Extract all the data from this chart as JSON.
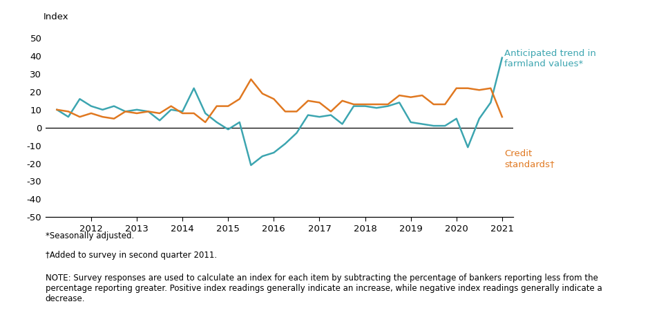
{
  "farmland_values": [
    10,
    6,
    16,
    12,
    10,
    12,
    9,
    10,
    9,
    4,
    10,
    9,
    22,
    8,
    3,
    -1,
    3,
    -21,
    -16,
    -14,
    -9,
    -3,
    7,
    6,
    7,
    2,
    12,
    12,
    11,
    12,
    14,
    3,
    2,
    1,
    1,
    5,
    -11,
    5,
    14,
    39
  ],
  "credit_standards": [
    10,
    9,
    6,
    8,
    6,
    5,
    9,
    8,
    9,
    8,
    12,
    8,
    8,
    3,
    12,
    12,
    16,
    27,
    19,
    16,
    9,
    9,
    15,
    14,
    9,
    15,
    13,
    13,
    13,
    13,
    18,
    17,
    18,
    13,
    13,
    22,
    22,
    21,
    22,
    6
  ],
  "x_start": 2011.25,
  "x_step": 0.25,
  "farmland_color": "#3ca5b0",
  "credit_color": "#e07820",
  "ylabel": "Index",
  "ylim": [
    -50,
    55
  ],
  "yticks": [
    -50,
    -40,
    -30,
    -20,
    -10,
    0,
    10,
    20,
    30,
    40,
    50
  ],
  "xlim": [
    2011.0,
    2021.25
  ],
  "xtick_years": [
    2012,
    2013,
    2014,
    2015,
    2016,
    2017,
    2018,
    2019,
    2020,
    2021
  ],
  "annotation_farmland": "Anticipated trend in\nfarmland values*",
  "annotation_credit": "Credit\nstandards†",
  "footnote1": "*Seasonally adjusted.",
  "footnote2": "†Added to survey in second quarter 2011.",
  "footnote3": "NOTE: Survey responses are used to calculate an index for each item by subtracting the percentage of bankers reporting less from the\npercentage reporting greater. Positive index readings generally indicate an increase, while negative index readings generally indicate a\ndecrease.",
  "background_color": "#ffffff",
  "line_width": 1.8,
  "fig_width": 9.41,
  "fig_height": 4.69,
  "dpi": 100
}
